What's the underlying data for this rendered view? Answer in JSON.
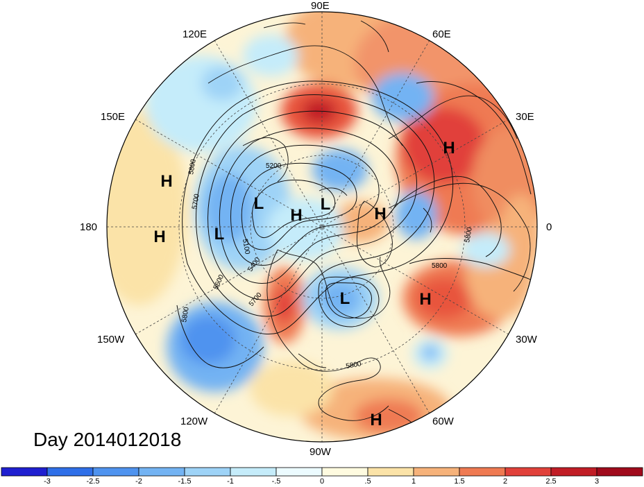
{
  "title": "Day 2014012018",
  "longitude_labels": [
    "90E",
    "60E",
    "30E",
    "0",
    "30W",
    "60W",
    "90W",
    "120W",
    "150W",
    "180",
    "150E",
    "120E"
  ],
  "systems": [
    {
      "id": "H1",
      "type": "H"
    },
    {
      "id": "H2",
      "type": "H"
    },
    {
      "id": "H3",
      "type": "H"
    },
    {
      "id": "H4",
      "type": "H"
    },
    {
      "id": "H5",
      "type": "H"
    },
    {
      "id": "H6",
      "type": "H"
    },
    {
      "id": "H7",
      "type": "H"
    },
    {
      "id": "L1",
      "type": "L"
    },
    {
      "id": "L2",
      "type": "L"
    },
    {
      "id": "L3",
      "type": "L"
    },
    {
      "id": "L4",
      "type": "L"
    }
  ],
  "contour_labels": [
    "5200",
    "5800",
    "5700",
    "5100",
    "5400",
    "5600",
    "5700",
    "5800",
    "5800",
    "5800",
    "5800"
  ],
  "colorbar": {
    "ticks": [
      "-3",
      "-2.5",
      "-2",
      "-1.5",
      "-1",
      "-.5",
      "0",
      ".5",
      "1",
      "1.5",
      "2",
      "2.5",
      "3"
    ],
    "colors": [
      "#1f1fd0",
      "#2f6fe8",
      "#4f93ef",
      "#73b3f3",
      "#9ed3f7",
      "#c5ecfa",
      "#ecfbff",
      "#fffbe0",
      "#fbe3a8",
      "#f6b27a",
      "#ef7a52",
      "#e1413a",
      "#c11d26",
      "#a00a1c"
    ]
  },
  "colors": {
    "land": "#fdf6d2",
    "coast": "#111111",
    "grid": "#444444",
    "contour": "#111111"
  }
}
